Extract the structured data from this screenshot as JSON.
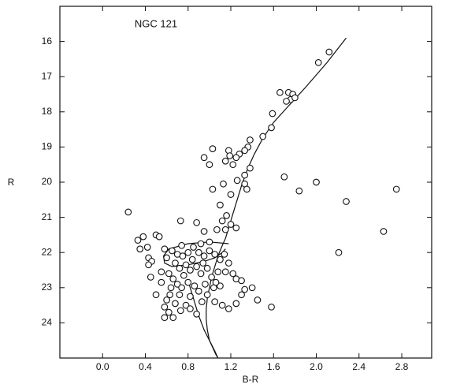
{
  "chart_data": {
    "type": "scatter",
    "annotation": "NGC 121",
    "x_label": "B-R",
    "y_label": "R",
    "xlim": [
      -0.4,
      3.08
    ],
    "ylim": [
      25,
      15
    ],
    "xticks": [
      {
        "value": 0,
        "label": "0.0"
      },
      0.4,
      0.8,
      1.2,
      1.6,
      {
        "value": 2,
        "label": "2.0"
      },
      2.4,
      2.8
    ],
    "yticks": [
      16,
      17,
      18,
      19,
      20,
      21,
      22,
      23,
      24
    ],
    "color": "#111111",
    "series": [
      {
        "x": [
          2.12,
          2.02,
          1.66,
          1.74,
          1.78,
          1.76,
          1.72,
          1.8,
          1.59,
          1.58,
          1.5,
          1.38,
          1.36,
          1.33,
          1.28,
          1.25,
          1.03,
          1.18,
          1.19,
          1.15,
          0.95,
          1.0,
          1.22,
          1.38,
          1.33,
          1.26,
          1.33,
          1.35,
          1.03,
          1.13,
          1.2,
          1.7,
          1.84,
          2.0,
          2.28,
          2.75,
          2.63,
          2.21,
          0.24,
          1.1,
          1.16,
          1.12,
          1.2,
          1.25,
          1.15,
          1.07,
          0.88,
          0.73,
          0.95,
          0.38,
          0.33,
          0.5,
          0.53,
          0.42,
          0.35,
          0.43,
          0.46,
          0.43,
          0.55,
          0.45,
          0.55,
          0.5,
          0.63,
          0.6,
          0.58,
          0.62,
          0.58,
          0.66,
          0.73,
          0.78,
          0.82,
          0.88,
          0.68,
          0.93,
          1.05,
          1.12,
          1.18,
          1.25,
          1.45,
          1.58,
          1.4,
          1.3,
          1.33,
          1.25,
          1.3,
          1.15,
          1.22,
          0.65,
          0.7,
          0.75,
          0.8,
          0.85,
          0.9,
          0.95,
          1.0,
          1.05,
          1.1,
          0.68,
          0.72,
          0.78,
          0.82,
          0.88,
          0.92,
          0.98,
          1.02,
          1.08,
          0.62,
          0.66,
          0.7,
          0.74,
          0.8,
          0.86,
          0.9,
          0.96,
          1.04,
          1.1,
          0.76,
          0.84,
          0.94,
          0.6,
          0.64,
          0.72,
          0.82,
          0.98,
          1.06,
          1.18,
          1.14,
          0.58,
          0.74,
          0.92,
          1.0
        ],
        "y": [
          16.3,
          16.6,
          17.45,
          17.45,
          17.5,
          17.65,
          17.7,
          17.6,
          18.05,
          18.45,
          18.7,
          18.8,
          19.0,
          19.1,
          19.2,
          19.3,
          19.05,
          19.1,
          19.25,
          19.4,
          19.3,
          19.5,
          19.5,
          19.6,
          19.8,
          19.95,
          20.05,
          20.2,
          20.2,
          20.05,
          20.35,
          19.85,
          20.25,
          20.0,
          20.55,
          20.2,
          21.4,
          22.0,
          20.85,
          20.65,
          20.95,
          21.1,
          21.2,
          21.3,
          21.35,
          21.35,
          21.15,
          21.1,
          21.4,
          21.55,
          21.65,
          21.5,
          21.55,
          21.85,
          21.9,
          22.15,
          22.25,
          22.35,
          22.55,
          22.7,
          22.85,
          23.2,
          23.2,
          23.35,
          23.55,
          23.7,
          23.85,
          23.85,
          23.65,
          23.5,
          23.6,
          23.75,
          23.45,
          23.4,
          23.4,
          23.5,
          23.6,
          23.45,
          23.35,
          23.55,
          23.0,
          23.2,
          23.05,
          22.75,
          22.8,
          22.55,
          22.6,
          21.95,
          22.05,
          22.1,
          22.0,
          21.85,
          22.0,
          22.1,
          21.95,
          22.05,
          22.2,
          22.3,
          22.45,
          22.35,
          22.5,
          22.4,
          22.6,
          22.45,
          22.7,
          22.55,
          22.6,
          22.75,
          22.9,
          23.0,
          22.85,
          22.95,
          23.1,
          22.9,
          23.0,
          22.95,
          22.65,
          22.2,
          22.3,
          22.15,
          23.0,
          23.2,
          23.25,
          23.2,
          22.85,
          22.3,
          22.05,
          21.9,
          21.8,
          21.75,
          21.7
        ]
      }
    ],
    "curves": [
      {
        "x": [
          2.28,
          2.1,
          1.9,
          1.75,
          1.6,
          1.5,
          1.42,
          1.36,
          1.3,
          1.26,
          1.22,
          1.18,
          1.15,
          1.12,
          1.1,
          1.08,
          1.05,
          1.02,
          1.0,
          0.98,
          0.97,
          0.97,
          0.98,
          1.0,
          1.03,
          1.06,
          1.08
        ],
        "y": [
          15.9,
          16.6,
          17.3,
          17.8,
          18.3,
          18.75,
          19.2,
          19.6,
          20.1,
          20.5,
          20.9,
          21.3,
          21.6,
          21.8,
          21.95,
          22.1,
          22.4,
          22.7,
          23.0,
          23.3,
          23.6,
          23.9,
          24.2,
          24.5,
          24.7,
          24.9,
          25.0
        ]
      },
      {
        "x": [
          1.18,
          1.0,
          0.8,
          0.62,
          0.57,
          0.58,
          0.65,
          0.8,
          0.95,
          1.05,
          1.12,
          1.15
        ],
        "y": [
          21.75,
          21.7,
          21.75,
          21.9,
          22.1,
          22.3,
          22.4,
          22.35,
          22.25,
          22.15,
          22.0,
          21.9
        ]
      },
      {
        "x": [
          0.8,
          0.85,
          0.9,
          0.95,
          1.0,
          1.05,
          1.08
        ],
        "y": [
          22.8,
          23.3,
          23.8,
          24.2,
          24.5,
          24.8,
          25.0
        ]
      }
    ]
  }
}
